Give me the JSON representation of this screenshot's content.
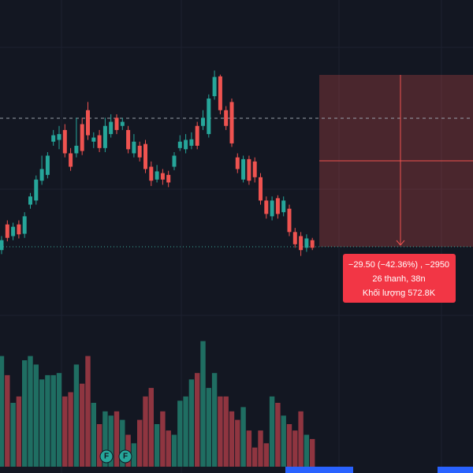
{
  "chart_data": {
    "type": "candlestick",
    "up_color": "#26a69a",
    "down_color": "#ef5350",
    "volume_up_color": "#1f6e62",
    "volume_down_color": "#8f3540",
    "ylim": [
      23,
      82.5
    ],
    "vlim": [
      0,
      60
    ],
    "open": [
      39.6,
      44.0,
      42.0,
      44.0,
      42.4,
      47.4,
      48.1,
      51.5,
      52.5,
      58.2,
      58.5,
      60.2,
      56.2,
      56.2,
      61.2,
      63.6,
      58.2,
      59.3,
      57.1,
      59.5,
      62.3,
      60.9,
      60.2,
      56.2,
      57.5,
      57.8,
      53.9,
      51.7,
      52.8,
      52.5,
      53.9,
      57.1,
      56.9,
      57.5,
      60.9,
      60.9,
      59.5,
      66.0,
      69.4,
      63.6,
      65.0,
      55.5,
      51.7,
      55.2,
      54.8,
      52.1,
      48.1,
      45.4,
      48.5,
      46.1,
      46.7,
      42.7,
      42.0,
      40.0,
      41.3
    ],
    "high": [
      42.0,
      44.7,
      44.3,
      44.7,
      46.1,
      49.4,
      52.4,
      55.8,
      56.4,
      60.2,
      60.9,
      61.2,
      57.1,
      62.3,
      62.3,
      65.0,
      59.8,
      60.2,
      62.3,
      62.9,
      62.9,
      62.3,
      60.9,
      59.5,
      58.2,
      58.5,
      54.8,
      54.2,
      53.5,
      53.2,
      56.4,
      59.3,
      59.5,
      59.8,
      61.6,
      63.6,
      66.3,
      70.4,
      69.7,
      64.3,
      65.6,
      56.2,
      55.8,
      55.8,
      55.5,
      52.8,
      48.8,
      48.8,
      49.0,
      48.8,
      47.4,
      43.4,
      42.7,
      42.3,
      41.7
    ],
    "low": [
      38.9,
      41.1,
      41.3,
      41.6,
      41.7,
      46.7,
      47.4,
      50.8,
      51.9,
      57.5,
      56.9,
      55.5,
      53.2,
      55.5,
      55.9,
      58.5,
      57.1,
      56.4,
      56.4,
      58.9,
      59.5,
      60.2,
      56.2,
      55.5,
      54.8,
      52.8,
      50.6,
      51.2,
      50.8,
      50.4,
      53.3,
      56.6,
      56.2,
      56.9,
      56.9,
      60.2,
      58.9,
      65.4,
      62.9,
      60.2,
      57.3,
      52.8,
      51.2,
      50.8,
      51.2,
      47.4,
      45.0,
      44.7,
      45.0,
      45.4,
      42.0,
      40.0,
      38.6,
      39.3,
      39.6
    ],
    "close": [
      41.3,
      41.7,
      43.6,
      42.3,
      45.4,
      48.8,
      51.7,
      53.5,
      55.8,
      59.3,
      59.5,
      56.2,
      53.9,
      57.5,
      56.6,
      59.3,
      58.9,
      57.1,
      60.9,
      61.6,
      60.2,
      61.6,
      56.9,
      58.2,
      55.5,
      53.5,
      51.5,
      53.1,
      51.7,
      51.2,
      55.8,
      58.2,
      58.5,
      58.6,
      57.5,
      62.3,
      65.6,
      69.3,
      63.6,
      60.9,
      57.9,
      53.5,
      55.2,
      51.5,
      52.1,
      48.1,
      45.8,
      48.1,
      45.8,
      48.1,
      42.7,
      40.6,
      39.6,
      41.6,
      40.0
    ],
    "volume": [
      52,
      43,
      30,
      33,
      50,
      52,
      48,
      41,
      43,
      43,
      44,
      33,
      35,
      48,
      39,
      52,
      30,
      20,
      26,
      24,
      26,
      22,
      15,
      11,
      22,
      33,
      37,
      20,
      26,
      17,
      15,
      31,
      33,
      41,
      44,
      59,
      37,
      44,
      33,
      33,
      26,
      22,
      28,
      17,
      9,
      17,
      11,
      33,
      30,
      24,
      20,
      17,
      26,
      15,
      13
    ],
    "measure": {
      "change": "−29.50 (−42.36%) , −2950",
      "span": "26 thanh, 38n",
      "volume": "Khối lượng 572.8K"
    },
    "markers": [
      "F",
      "F"
    ]
  }
}
